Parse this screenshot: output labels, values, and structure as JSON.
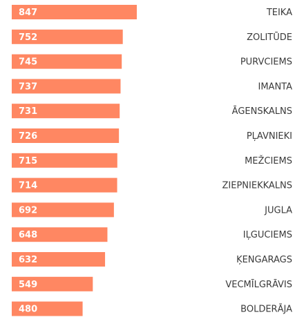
{
  "chart_data": {
    "type": "bar",
    "orientation": "horizontal",
    "color": "#ff8762",
    "categories": [
      "TEIKA",
      "ZOLITŪDE",
      "PURVCIEMS",
      "IMANTA",
      "ĀGENSKALNS",
      "PĻAVNIEKI",
      "MEŽCIEMS",
      "ZIEPNIEKKALNS",
      "JUGLA",
      "IĻGUCIEMS",
      "ĶENGARAGS",
      "VECMĪLGRĀVIS",
      "BOLDERĀJA"
    ],
    "values": [
      847,
      752,
      745,
      737,
      731,
      726,
      715,
      714,
      692,
      648,
      632,
      549,
      480
    ]
  }
}
